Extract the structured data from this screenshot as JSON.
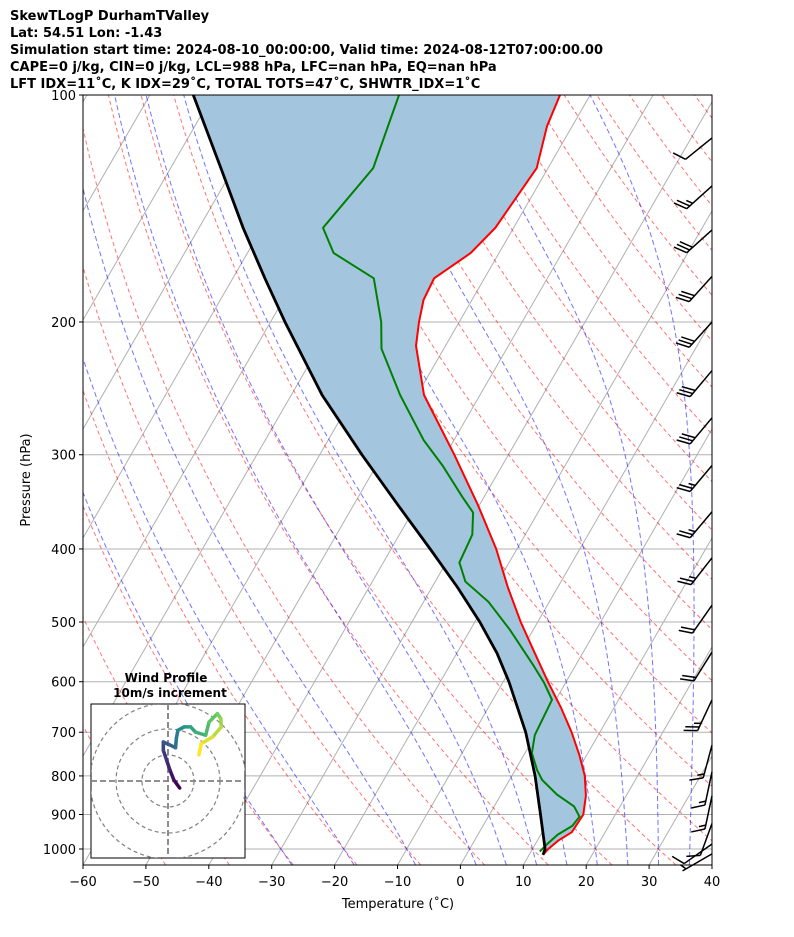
{
  "header": {
    "lines": [
      "SkewTLogP DurhamTValley",
      "Lat: 54.51   Lon: -1.43",
      "Simulation start time: 2024-08-10_00:00:00, Valid time: 2024-08-12T07:00:00.00",
      "CAPE=0 j/kg, CIN=0 j/kg, LCL=988 hPa, LFC=nan hPa, EQ=nan hPa",
      "LFT IDX=11˚C, K IDX=29˚C, TOTAL TOTS=47˚C, SHWTR_IDX=1˚C"
    ]
  },
  "chart_data": {
    "type": "skewt",
    "xlabel": "Temperature (˚C)",
    "ylabel": "Pressure (hPa)",
    "xlim": [
      -60,
      40
    ],
    "ylim": [
      1050,
      100
    ],
    "xticks": [
      -60,
      -50,
      -40,
      -30,
      -20,
      -10,
      0,
      10,
      20,
      30,
      40
    ],
    "yticks": [
      100,
      200,
      300,
      400,
      500,
      600,
      700,
      800,
      900,
      1000
    ],
    "grid": true,
    "temperature": {
      "color": "#ff0000",
      "p": [
        100,
        110,
        125,
        150,
        162,
        175,
        187,
        200,
        215,
        250,
        300,
        350,
        400,
        450,
        500,
        550,
        600,
        650,
        700,
        750,
        800,
        850,
        900,
        950,
        975,
        1000,
        1018
      ],
      "t": [
        -54.8,
        -54.0,
        -51.8,
        -52.9,
        -54.5,
        -58.0,
        -57.7,
        -56.4,
        -54.7,
        -48.9,
        -38.6,
        -30.2,
        -23.3,
        -17.9,
        -12.7,
        -7.6,
        -2.9,
        1.6,
        5.5,
        8.8,
        11.6,
        13.6,
        14.9,
        14.7,
        13.3,
        12.5,
        12.2
      ]
    },
    "dewpoint": {
      "color": "#008000",
      "p": [
        100,
        125,
        150,
        162,
        175,
        200,
        217,
        250,
        287,
        310,
        341,
        358,
        383,
        417,
        442,
        470,
        512,
        570,
        602,
        634,
        706,
        746,
        786,
        810,
        847,
        878,
        906,
        932,
        957,
        984,
        1008
      ],
      "t": [
        -80.4,
        -77.8,
        -80.3,
        -76.3,
        -67.6,
        -62.4,
        -59.9,
        -52.7,
        -44.8,
        -39.5,
        -33.5,
        -30.3,
        -28.4,
        -27.9,
        -25.2,
        -19.7,
        -13.7,
        -6.8,
        -3.4,
        -0.6,
        -0.1,
        1.1,
        3.5,
        5.2,
        8.9,
        12.7,
        14.5,
        14.2,
        12.7,
        11.9,
        11.4
      ]
    },
    "parcel": {
      "color": "#000000",
      "p": [
        100,
        125,
        150,
        175,
        200,
        250,
        300,
        350,
        400,
        450,
        500,
        550,
        600,
        700,
        800,
        900,
        1000,
        1018
      ],
      "t": [
        -113.1,
        -102.0,
        -93.0,
        -84.9,
        -77.7,
        -65.1,
        -53.3,
        -42.9,
        -33.8,
        -25.9,
        -19.2,
        -13.6,
        -9.1,
        -1.8,
        3.7,
        8.1,
        12.0,
        12.2
      ]
    },
    "cape_cin_fill_color": "#a3c6de",
    "wind_barbs": [
      {
        "p": 114,
        "dir": 231,
        "speed_kt": 10
      },
      {
        "p": 132,
        "dir": 228,
        "speed_kt": 25
      },
      {
        "p": 151,
        "dir": 228,
        "speed_kt": 30
      },
      {
        "p": 174,
        "dir": 222,
        "speed_kt": 30
      },
      {
        "p": 200,
        "dir": 222,
        "speed_kt": 30
      },
      {
        "p": 232,
        "dir": 220,
        "speed_kt": 30
      },
      {
        "p": 268,
        "dir": 220,
        "speed_kt": 30
      },
      {
        "p": 310,
        "dir": 220,
        "speed_kt": 25
      },
      {
        "p": 357,
        "dir": 220,
        "speed_kt": 25
      },
      {
        "p": 411,
        "dir": 218,
        "speed_kt": 25
      },
      {
        "p": 475,
        "dir": 215,
        "speed_kt": 20
      },
      {
        "p": 548,
        "dir": 212,
        "speed_kt": 20
      },
      {
        "p": 634,
        "dir": 205,
        "speed_kt": 25
      },
      {
        "p": 728,
        "dir": 195,
        "speed_kt": 15
      },
      {
        "p": 790,
        "dir": 192,
        "speed_kt": 15
      },
      {
        "p": 850,
        "dir": 192,
        "speed_kt": 15
      },
      {
        "p": 925,
        "dir": 200,
        "speed_kt": 10
      },
      {
        "p": 985,
        "dir": 235,
        "speed_kt": 10
      },
      {
        "p": 1015,
        "dir": 240,
        "speed_kt": 5
      }
    ],
    "hodograph": {
      "title": "Wind Profile",
      "subtitle": "10m/s increment",
      "rings_ms": [
        10,
        20,
        30
      ],
      "u": [
        4.5,
        2.3,
        0.8,
        -0.5,
        -1.8,
        -1.8,
        0.4,
        2.9,
        3.2,
        3.8,
        6.2,
        8.7,
        10.6,
        14.5,
        15.8,
        19.0,
        20.3,
        20.5,
        17.1,
        12.8,
        11.9
      ],
      "v": [
        -2.7,
        0.3,
        4.1,
        7.9,
        11.8,
        15.0,
        14.0,
        12.8,
        16.3,
        19.5,
        20.8,
        20.8,
        18.8,
        17.6,
        22.7,
        25.9,
        24.0,
        20.8,
        16.9,
        14.4,
        10.1
      ]
    }
  }
}
